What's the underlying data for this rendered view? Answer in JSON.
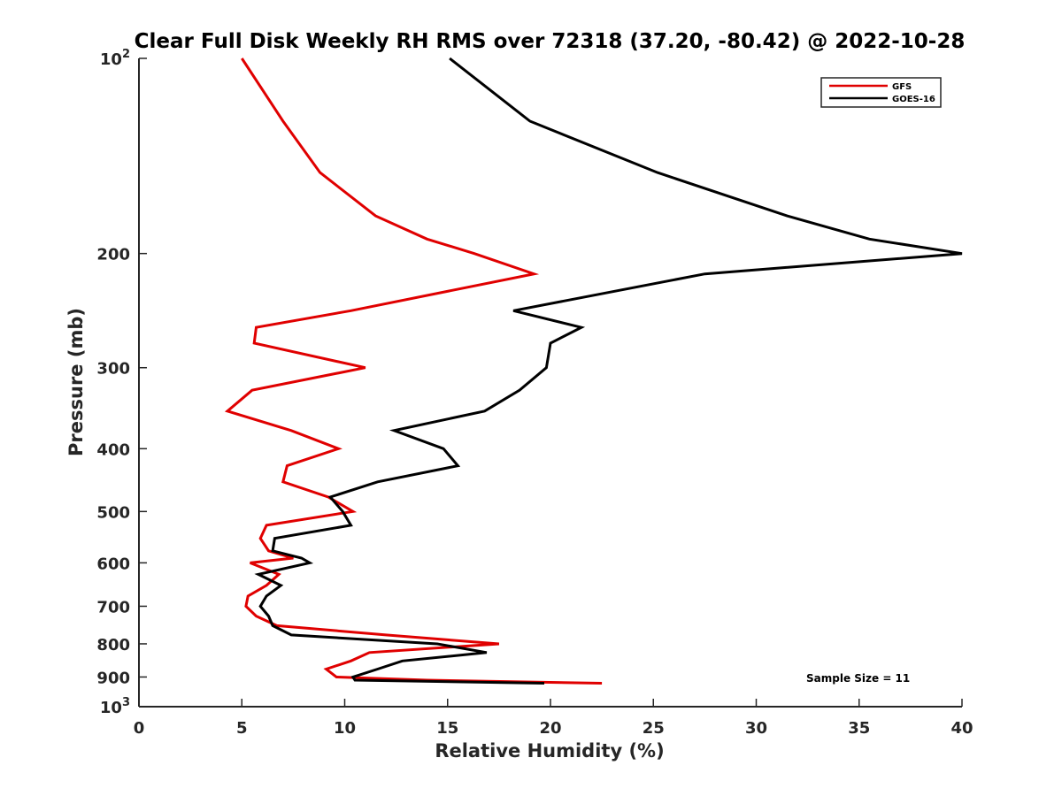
{
  "chart_data": {
    "type": "line",
    "title": "Clear Full Disk Weekly RH RMS over 72318 (37.20, -80.42) @ 2022-10-28",
    "xlabel": "Relative Humidity (%)",
    "ylabel": "Pressure (mb)",
    "xlim": [
      0,
      40
    ],
    "ylim": [
      100,
      1000
    ],
    "yscale": "log",
    "y_reversed": true,
    "xticks": [
      0,
      5,
      10,
      15,
      20,
      25,
      30,
      35,
      40
    ],
    "yticks": [
      {
        "value": 100,
        "label": "10",
        "exp": "2"
      },
      {
        "value": 200,
        "label": "200"
      },
      {
        "value": 300,
        "label": "300"
      },
      {
        "value": 400,
        "label": "400"
      },
      {
        "value": 500,
        "label": "500"
      },
      {
        "value": 600,
        "label": "600"
      },
      {
        "value": 700,
        "label": "700"
      },
      {
        "value": 800,
        "label": "800"
      },
      {
        "value": 900,
        "label": "900"
      },
      {
        "value": 1000,
        "label": "10",
        "exp": "3"
      }
    ],
    "grid": false,
    "legend_position": "top-right",
    "annotation": "Sample Size = 11",
    "series": [
      {
        "name": "GFS",
        "color": "#e00000",
        "points": [
          [
            5.0,
            100
          ],
          [
            7.0,
            125
          ],
          [
            8.8,
            150
          ],
          [
            11.5,
            175
          ],
          [
            14.0,
            190
          ],
          [
            16.3,
            200
          ],
          [
            19.2,
            215
          ],
          [
            10.3,
            245
          ],
          [
            5.7,
            260
          ],
          [
            5.6,
            275
          ],
          [
            11.0,
            300
          ],
          [
            5.5,
            325
          ],
          [
            4.3,
            350
          ],
          [
            7.4,
            375
          ],
          [
            9.7,
            400
          ],
          [
            7.2,
            425
          ],
          [
            7.0,
            450
          ],
          [
            9.2,
            475
          ],
          [
            10.4,
            500
          ],
          [
            6.2,
            525
          ],
          [
            5.9,
            550
          ],
          [
            6.3,
            575
          ],
          [
            7.5,
            590
          ],
          [
            5.4,
            600
          ],
          [
            6.8,
            625
          ],
          [
            6.2,
            650
          ],
          [
            5.3,
            675
          ],
          [
            5.2,
            700
          ],
          [
            5.7,
            725
          ],
          [
            6.7,
            750
          ],
          [
            12.0,
            775
          ],
          [
            17.5,
            800
          ],
          [
            11.2,
            825
          ],
          [
            10.3,
            850
          ],
          [
            9.1,
            875
          ],
          [
            9.6,
            900
          ],
          [
            14.0,
            910
          ],
          [
            22.5,
            920
          ]
        ]
      },
      {
        "name": "GOES-16",
        "color": "#000000",
        "points": [
          [
            15.1,
            100
          ],
          [
            19.0,
            125
          ],
          [
            25.2,
            150
          ],
          [
            31.5,
            175
          ],
          [
            35.5,
            190
          ],
          [
            40.0,
            200
          ],
          [
            27.5,
            215
          ],
          [
            18.2,
            245
          ],
          [
            21.5,
            260
          ],
          [
            20.0,
            275
          ],
          [
            19.8,
            300
          ],
          [
            18.5,
            325
          ],
          [
            16.8,
            350
          ],
          [
            12.4,
            375
          ],
          [
            14.8,
            400
          ],
          [
            15.5,
            425
          ],
          [
            11.6,
            450
          ],
          [
            9.3,
            475
          ],
          [
            9.9,
            500
          ],
          [
            10.3,
            525
          ],
          [
            6.6,
            550
          ],
          [
            6.5,
            575
          ],
          [
            7.9,
            590
          ],
          [
            8.3,
            600
          ],
          [
            5.8,
            625
          ],
          [
            6.9,
            650
          ],
          [
            6.2,
            675
          ],
          [
            5.9,
            700
          ],
          [
            6.3,
            725
          ],
          [
            6.5,
            750
          ],
          [
            7.4,
            775
          ],
          [
            14.5,
            800
          ],
          [
            16.9,
            825
          ],
          [
            12.8,
            850
          ],
          [
            11.6,
            875
          ],
          [
            10.4,
            900
          ],
          [
            10.5,
            910
          ],
          [
            19.7,
            920
          ]
        ]
      }
    ]
  }
}
